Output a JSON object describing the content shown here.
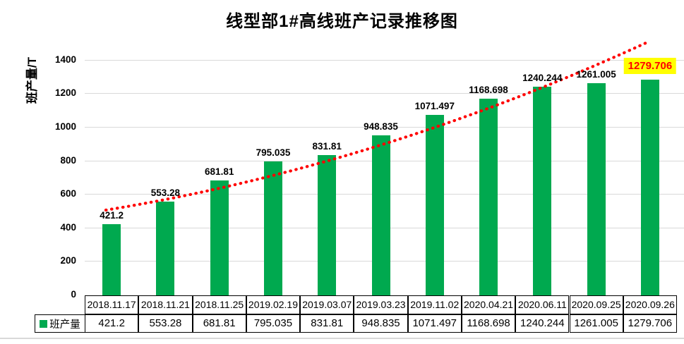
{
  "chart_data": {
    "type": "bar",
    "title": "线型部1#高线班产记录推移图",
    "ylabel": "班产量/T",
    "series_name": "班产量",
    "categories": [
      "2018.11.17",
      "2018.11.21",
      "2018.11.25",
      "2019.02.19",
      "2019.03.07",
      "2019.03.23",
      "2019.11.02",
      "2020.04.21",
      "2020.06.11",
      "2020.09.25",
      "2020.09.26"
    ],
    "values": [
      421.2,
      553.28,
      681.81,
      795.035,
      831.81,
      948.835,
      1071.497,
      1168.698,
      1240.244,
      1261.005,
      1279.706
    ],
    "data_labels": [
      "421.2",
      "553.28",
      "681.81",
      "795.035",
      "831.81",
      "948.835",
      "1071.497",
      "1168.698",
      "1240.244",
      "1261.005",
      "1279.706"
    ],
    "ylim": [
      0,
      1400
    ],
    "yticks": [
      0,
      200,
      400,
      600,
      800,
      1000,
      1200,
      1400
    ],
    "grid": true,
    "legend_position": "bottom-table-left",
    "trendline": {
      "type": "dotted",
      "shape": "exponential",
      "color": "#ff0000"
    },
    "highlight": {
      "index": 10,
      "label": "1279.706",
      "background": "#ffff00",
      "text_color": "#ff0000"
    },
    "colors": {
      "bar": "#00a94f",
      "gridline": "#d9d9d9",
      "axis": "#000000",
      "label": "#000000"
    }
  }
}
